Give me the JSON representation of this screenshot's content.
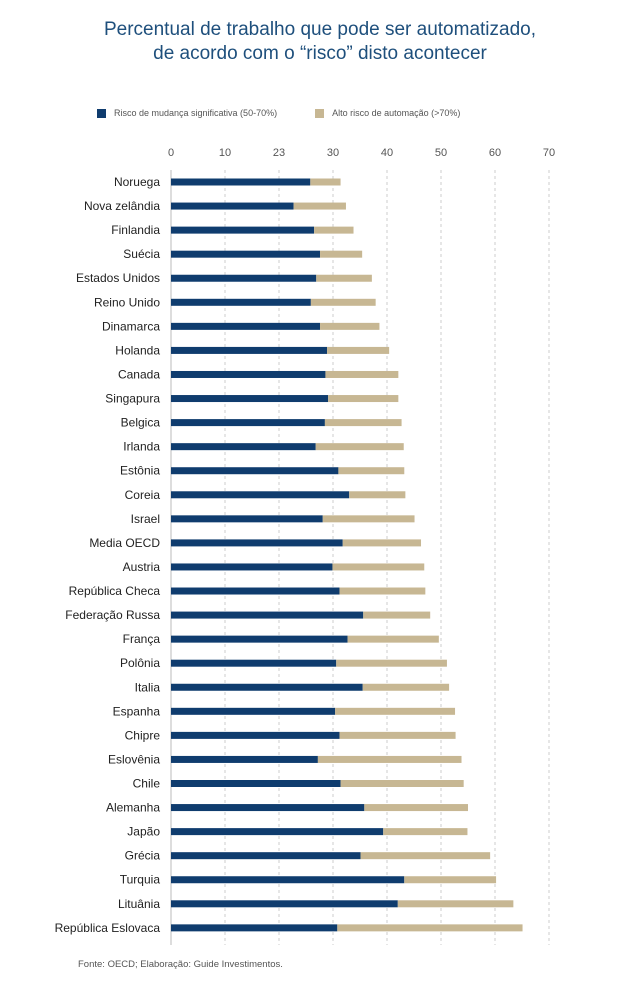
{
  "title_line1": "Percentual de trabalho que pode ser automatizado,",
  "title_line2": "de acordo com o “risco” disto acontecer",
  "source": "Fonte: OECD; Elaboração: Guide Investimentos.",
  "colors": {
    "significant": "#0f3c6e",
    "high": "#c7b793",
    "title": "#1e4f7c",
    "grid": "#cccccc"
  },
  "chart_data": {
    "type": "bar",
    "orientation": "horizontal",
    "stacked": true,
    "xlim": [
      0,
      70
    ],
    "tick_labels": [
      "0",
      "10",
      "23",
      "30",
      "40",
      "50",
      "60",
      "70"
    ],
    "grid": true,
    "legend_position": "top",
    "categories": [
      "Noruega",
      "Nova zelândia",
      "Finlandia",
      "Suécia",
      "Estados Unidos",
      "Reino Unido",
      "Dinamarca",
      "Holanda",
      "Canada",
      "Singapura",
      "Belgica",
      "Irlanda",
      "Estônia",
      "Coreia",
      "Israel",
      "Media OECD",
      "Austria",
      "República Checa",
      "Federação Russa",
      "França",
      "Polônia",
      "Italia",
      "Espanha",
      "Chipre",
      "Eslovênia",
      "Chile",
      "Alemanha",
      "Japão",
      "Grécia",
      "Turquia",
      "Lituânia",
      "República Eslovaca"
    ],
    "series": [
      {
        "name": "Risco de mudança significativa (50-70%)",
        "values": [
          25.8,
          22.7,
          26.5,
          27.6,
          26.9,
          25.9,
          27.6,
          28.9,
          28.6,
          29.1,
          28.5,
          26.8,
          31.0,
          33.0,
          28.1,
          31.8,
          29.9,
          31.2,
          35.6,
          32.7,
          30.6,
          35.5,
          30.4,
          31.2,
          27.2,
          31.4,
          35.8,
          39.3,
          35.1,
          43.2,
          42.0,
          30.8
        ],
        "color": "#0f3c6e"
      },
      {
        "name": "Alto risco de automação (>70%)",
        "values": [
          5.6,
          9.7,
          7.3,
          7.8,
          10.3,
          12.0,
          11.0,
          11.5,
          13.5,
          13.0,
          14.2,
          16.3,
          12.2,
          10.4,
          17.0,
          14.5,
          17.0,
          15.9,
          12.4,
          16.9,
          20.5,
          16.0,
          22.2,
          21.5,
          26.6,
          22.8,
          19.2,
          15.6,
          24.0,
          17.0,
          21.4,
          34.3
        ],
        "color": "#c7b793"
      }
    ]
  }
}
